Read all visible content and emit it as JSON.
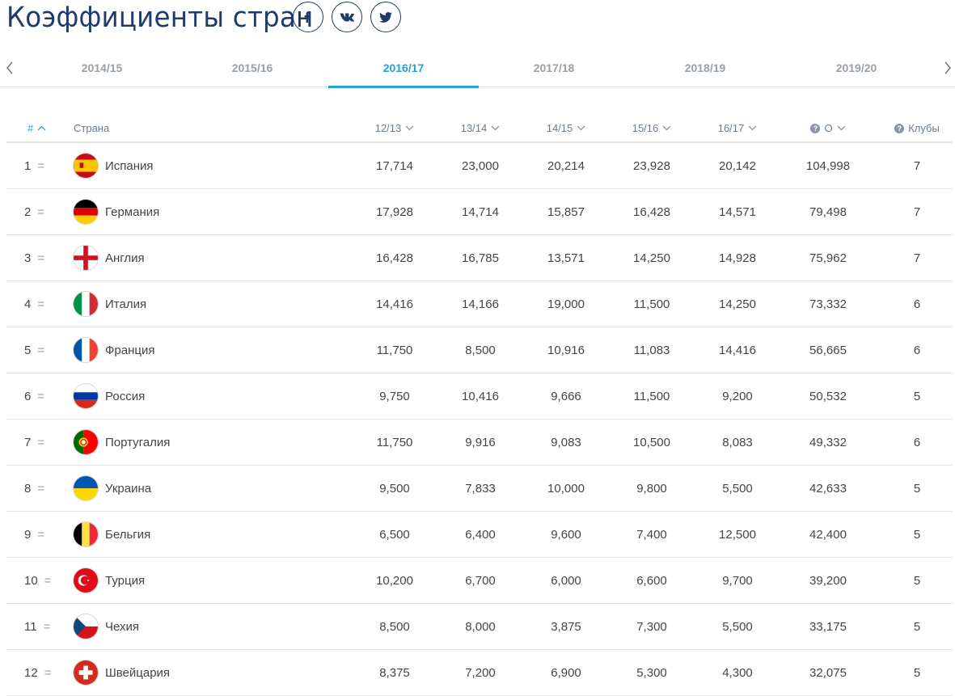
{
  "header": {
    "title": "Коэффициенты стран",
    "socials": [
      {
        "name": "facebook-icon"
      },
      {
        "name": "vk-icon"
      },
      {
        "name": "twitter-icon"
      }
    ]
  },
  "seasons": {
    "tabs": [
      "2014/15",
      "2015/16",
      "2016/17",
      "2017/18",
      "2018/19",
      "2019/20"
    ],
    "active_index": 2
  },
  "table": {
    "headers": {
      "rank": "#",
      "country": "Страна",
      "s1": "12/13",
      "s2": "13/14",
      "s3": "14/15",
      "s4": "15/16",
      "s5": "16/17",
      "total": "О",
      "clubs": "Клубы"
    },
    "rows": [
      {
        "rank": "1",
        "change": "=",
        "country": "Испания",
        "flag": "spain",
        "s1": "17,714",
        "s2": "23,000",
        "s3": "20,214",
        "s4": "23,928",
        "s5": "20,142",
        "total": "104,998",
        "clubs": "7"
      },
      {
        "rank": "2",
        "change": "=",
        "country": "Германия",
        "flag": "germany",
        "s1": "17,928",
        "s2": "14,714",
        "s3": "15,857",
        "s4": "16,428",
        "s5": "14,571",
        "total": "79,498",
        "clubs": "7"
      },
      {
        "rank": "3",
        "change": "=",
        "country": "Англия",
        "flag": "england",
        "s1": "16,428",
        "s2": "16,785",
        "s3": "13,571",
        "s4": "14,250",
        "s5": "14,928",
        "total": "75,962",
        "clubs": "7"
      },
      {
        "rank": "4",
        "change": "=",
        "country": "Италия",
        "flag": "italy",
        "s1": "14,416",
        "s2": "14,166",
        "s3": "19,000",
        "s4": "11,500",
        "s5": "14,250",
        "total": "73,332",
        "clubs": "6"
      },
      {
        "rank": "5",
        "change": "=",
        "country": "Франция",
        "flag": "france",
        "s1": "11,750",
        "s2": "8,500",
        "s3": "10,916",
        "s4": "11,083",
        "s5": "14,416",
        "total": "56,665",
        "clubs": "6"
      },
      {
        "rank": "6",
        "change": "=",
        "country": "Россия",
        "flag": "russia",
        "s1": "9,750",
        "s2": "10,416",
        "s3": "9,666",
        "s4": "11,500",
        "s5": "9,200",
        "total": "50,532",
        "clubs": "5"
      },
      {
        "rank": "7",
        "change": "=",
        "country": "Португалия",
        "flag": "portugal",
        "s1": "11,750",
        "s2": "9,916",
        "s3": "9,083",
        "s4": "10,500",
        "s5": "8,083",
        "total": "49,332",
        "clubs": "6"
      },
      {
        "rank": "8",
        "change": "=",
        "country": "Украина",
        "flag": "ukraine",
        "s1": "9,500",
        "s2": "7,833",
        "s3": "10,000",
        "s4": "9,800",
        "s5": "5,500",
        "total": "42,633",
        "clubs": "5"
      },
      {
        "rank": "9",
        "change": "=",
        "country": "Бельгия",
        "flag": "belgium",
        "s1": "6,500",
        "s2": "6,400",
        "s3": "9,600",
        "s4": "7,400",
        "s5": "12,500",
        "total": "42,400",
        "clubs": "5"
      },
      {
        "rank": "10",
        "change": "=",
        "country": "Турция",
        "flag": "turkey",
        "s1": "10,200",
        "s2": "6,700",
        "s3": "6,000",
        "s4": "6,600",
        "s5": "9,700",
        "total": "39,200",
        "clubs": "5"
      },
      {
        "rank": "11",
        "change": "=",
        "country": "Чехия",
        "flag": "czechia",
        "s1": "8,500",
        "s2": "8,000",
        "s3": "3,875",
        "s4": "7,300",
        "s5": "5,500",
        "total": "33,175",
        "clubs": "5"
      },
      {
        "rank": "12",
        "change": "=",
        "country": "Швейцария",
        "flag": "switzerland",
        "s1": "8,375",
        "s2": "7,200",
        "s3": "6,900",
        "s4": "5,300",
        "s5": "4,300",
        "total": "32,075",
        "clubs": "5"
      }
    ]
  },
  "colors": {
    "title": "#203a6b",
    "accent": "#2a9fd6",
    "muted": "#9aa0a6"
  }
}
